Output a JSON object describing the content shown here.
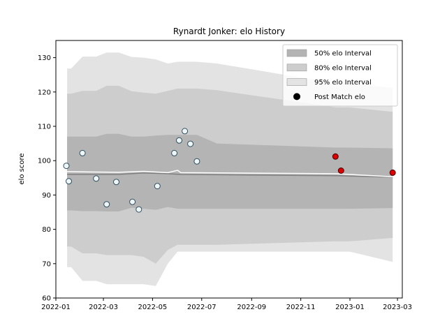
{
  "chart_data": {
    "type": "line",
    "title": "Rynardt Jonker: elo History",
    "xlabel": "",
    "ylabel": "elo score",
    "xlim": [
      "2022-01-01",
      "2023-03-07"
    ],
    "ylim": [
      60,
      135
    ],
    "x_ticks": [
      "2022-01",
      "2022-03",
      "2022-05",
      "2022-07",
      "2022-09",
      "2022-11",
      "2023-01",
      "2023-03"
    ],
    "y_ticks": [
      60,
      70,
      80,
      90,
      100,
      110,
      120,
      130
    ],
    "grid": false,
    "legend_position": "top-right",
    "legend": [
      {
        "label": "50% elo Interval",
        "swatch": "band50"
      },
      {
        "label": "80% elo Interval",
        "swatch": "band80"
      },
      {
        "label": "95% elo Interval",
        "swatch": "band95"
      },
      {
        "label": "Post Match elo",
        "swatch": "marker"
      }
    ],
    "colors": {
      "band95": "#e3e3e3",
      "band80": "#cdcdcd",
      "band50": "#b4b4b4",
      "mean_line": "#808080",
      "median_line": "#ffffff",
      "point_old_fill": "#eef6f8",
      "point_old_edge": "#2f4f5f",
      "point_recent_fill": "#dd0000",
      "point_recent_edge": "#440000",
      "legend_marker": "#000000"
    },
    "bands": {
      "dates": [
        "2022-01-15",
        "2022-01-20",
        "2022-02-03",
        "2022-02-20",
        "2022-03-05",
        "2022-03-20",
        "2022-04-05",
        "2022-04-20",
        "2022-05-05",
        "2022-05-20",
        "2022-06-01",
        "2022-06-05",
        "2022-06-25",
        "2022-07-20",
        "2022-12-15",
        "2023-01-01",
        "2023-02-23"
      ],
      "p95_low": [
        69,
        69,
        65,
        65,
        64,
        64,
        64,
        64,
        63.5,
        70,
        73.5,
        73.5,
        73.5,
        73.5,
        73.5,
        73.5,
        70.5
      ],
      "p80_low": [
        75,
        75,
        73,
        73,
        72.5,
        72.5,
        72.5,
        72,
        70,
        74,
        75.5,
        75.5,
        75.5,
        75.5,
        76.5,
        76.5,
        77.5
      ],
      "p50_low": [
        85.5,
        85.5,
        85.3,
        85.3,
        85.2,
        85.2,
        86.3,
        86,
        85.7,
        86.5,
        86,
        86,
        86,
        86,
        86,
        86,
        86.2
      ],
      "p50_high": [
        107,
        107,
        107,
        107,
        107.8,
        107.8,
        107,
        107,
        107.3,
        107.5,
        107.5,
        107.5,
        107.5,
        105,
        103.8,
        103.8,
        103.6
      ],
      "p80_high": [
        119.5,
        119.5,
        120.3,
        120.3,
        121.8,
        121.8,
        120.2,
        119.8,
        119.5,
        120.3,
        121,
        121,
        121,
        120.5,
        115.5,
        115.5,
        114.2
      ],
      "p95_high": [
        126.8,
        126.8,
        130.3,
        130.3,
        131.5,
        131.5,
        130.2,
        130,
        129.5,
        128.3,
        128.8,
        128.8,
        128.8,
        128.3,
        122.5,
        122.5,
        121.2
      ]
    },
    "mean_line": {
      "dates": [
        "2022-01-15",
        "2022-03-20",
        "2022-04-20",
        "2022-05-20",
        "2022-06-05",
        "2022-12-15",
        "2023-02-23"
      ],
      "values": [
        96,
        96,
        96.4,
        96.2,
        96,
        95.6,
        95.2
      ]
    },
    "median_line": {
      "dates": [
        "2022-01-15",
        "2022-03-20",
        "2022-04-20",
        "2022-05-20",
        "2022-06-01",
        "2022-06-05",
        "2022-12-15",
        "2023-02-23"
      ],
      "values": [
        96.8,
        96.6,
        96.9,
        96.5,
        97.2,
        96.5,
        96.2,
        95.3
      ]
    },
    "series": [
      {
        "name": "Post Match elo",
        "points": [
          {
            "x": "2022-01-14",
            "y": 98.5,
            "recent": false
          },
          {
            "x": "2022-01-17",
            "y": 94.0,
            "recent": false
          },
          {
            "x": "2022-02-03",
            "y": 102.2,
            "recent": false
          },
          {
            "x": "2022-02-20",
            "y": 94.8,
            "recent": false
          },
          {
            "x": "2022-03-05",
            "y": 87.3,
            "recent": false
          },
          {
            "x": "2022-03-17",
            "y": 93.8,
            "recent": false
          },
          {
            "x": "2022-04-06",
            "y": 88.0,
            "recent": false
          },
          {
            "x": "2022-04-14",
            "y": 85.8,
            "recent": false
          },
          {
            "x": "2022-05-07",
            "y": 92.6,
            "recent": false
          },
          {
            "x": "2022-05-28",
            "y": 102.2,
            "recent": false
          },
          {
            "x": "2022-06-03",
            "y": 105.9,
            "recent": false
          },
          {
            "x": "2022-06-10",
            "y": 108.6,
            "recent": false
          },
          {
            "x": "2022-06-17",
            "y": 104.9,
            "recent": false
          },
          {
            "x": "2022-06-25",
            "y": 99.8,
            "recent": false
          },
          {
            "x": "2022-12-14",
            "y": 101.2,
            "recent": true
          },
          {
            "x": "2022-12-21",
            "y": 97.1,
            "recent": true
          },
          {
            "x": "2023-02-23",
            "y": 96.5,
            "recent": true
          }
        ]
      }
    ]
  }
}
